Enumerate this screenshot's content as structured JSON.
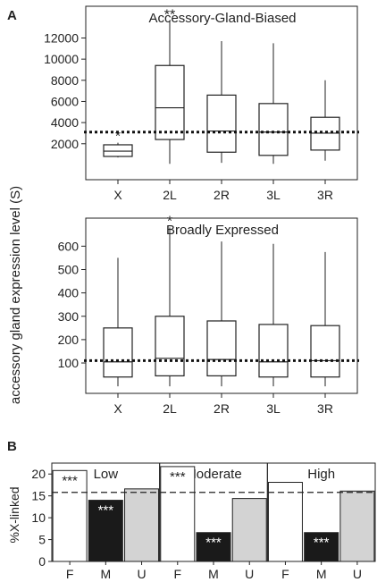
{
  "panel_labels": {
    "a": "A",
    "b": "B"
  },
  "shared_ylabel": "accessory gland expression level (S)",
  "chart_data": [
    {
      "type": "box",
      "title": "Accessory-Gland-Biased",
      "categories": [
        "X",
        "2L",
        "2R",
        "3L",
        "3R"
      ],
      "boxes": [
        {
          "min": 700,
          "q1": 800,
          "median": 1300,
          "q3": 1900,
          "max": 2100
        },
        {
          "min": 100,
          "q1": 2400,
          "median": 5400,
          "q3": 9400,
          "max": 13600
        },
        {
          "min": 200,
          "q1": 1200,
          "median": 3200,
          "q3": 6600,
          "max": 11700
        },
        {
          "min": 100,
          "q1": 900,
          "median": 3100,
          "q3": 5800,
          "max": 11500
        },
        {
          "min": 400,
          "q1": 1400,
          "median": 3000,
          "q3": 4500,
          "max": 8000
        }
      ],
      "reference_line": 3100,
      "significance": [
        "*",
        "**",
        "",
        "",
        ""
      ],
      "yticks": [
        2000,
        4000,
        6000,
        8000,
        10000,
        12000
      ],
      "ylim": [
        -1400,
        15000
      ]
    },
    {
      "type": "box",
      "title": "Broadly Expressed",
      "categories": [
        "X",
        "2L",
        "2R",
        "3L",
        "3R"
      ],
      "boxes": [
        {
          "min": 0,
          "q1": 40,
          "median": 105,
          "q3": 250,
          "max": 550
        },
        {
          "min": 0,
          "q1": 45,
          "median": 120,
          "q3": 300,
          "max": 680
        },
        {
          "min": 0,
          "q1": 45,
          "median": 115,
          "q3": 280,
          "max": 620
        },
        {
          "min": 0,
          "q1": 40,
          "median": 105,
          "q3": 265,
          "max": 610
        },
        {
          "min": 0,
          "q1": 40,
          "median": 110,
          "q3": 260,
          "max": 575
        }
      ],
      "reference_line": 110,
      "significance": [
        "",
        "*",
        "",
        "",
        ""
      ],
      "yticks": [
        100,
        200,
        300,
        400,
        500,
        600
      ],
      "ylim": [
        -30,
        720
      ]
    },
    {
      "type": "bar",
      "ylabel": "%X-linked",
      "ylim": [
        0,
        22.5
      ],
      "yticks": [
        0,
        5,
        10,
        15,
        20
      ],
      "reference_line": 15.8,
      "categories": [
        "F",
        "M",
        "U"
      ],
      "colors": {
        "F": "#ffffff",
        "M": "#1a1a1a",
        "U": "#d3d3d3"
      },
      "panels": [
        {
          "name": "Low",
          "values": [
            20.8,
            14.0,
            16.6
          ],
          "significance": [
            "***",
            "***",
            ""
          ]
        },
        {
          "name": "Moderate",
          "values": [
            21.7,
            6.6,
            14.4
          ],
          "significance": [
            "***",
            "***",
            ""
          ]
        },
        {
          "name": "High",
          "values": [
            18.1,
            6.6,
            16.1
          ],
          "significance": [
            "",
            "***",
            ""
          ]
        }
      ]
    }
  ]
}
